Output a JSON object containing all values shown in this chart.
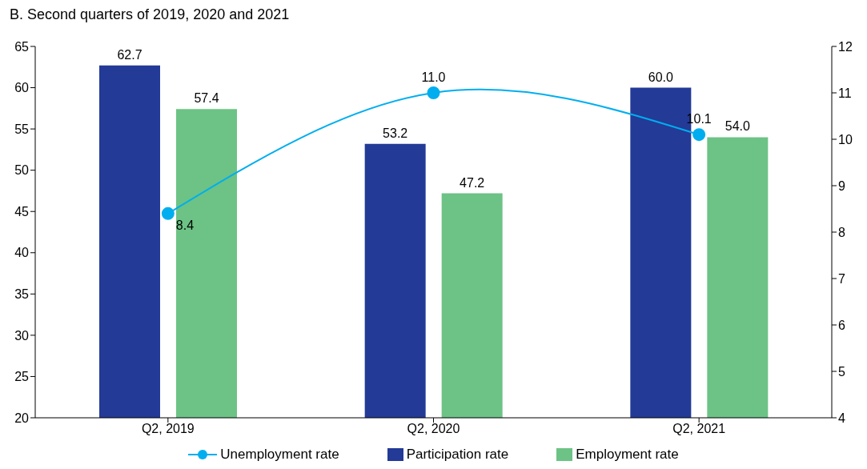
{
  "chart_data": {
    "type": "bar",
    "title": "B. Second quarters of 2019, 2020 and 2021",
    "categories": [
      "Q2, 2019",
      "Q2, 2020",
      "Q2, 2021"
    ],
    "series": [
      {
        "name": "Unemployment rate",
        "type": "line",
        "axis": "y2",
        "color": "#00aeef",
        "values": [
          8.4,
          11.0,
          10.1
        ],
        "value_labels": [
          "8.4",
          "11.0",
          "10.1"
        ],
        "marker": "circle"
      },
      {
        "name": "Participation rate",
        "color": "#233a97",
        "values": [
          62.7,
          53.2,
          60.0
        ],
        "value_labels": [
          "62.7",
          "53.2",
          "60.0"
        ]
      },
      {
        "name": "Employment rate",
        "color": "#6cc385",
        "values": [
          57.4,
          47.2,
          54.0
        ],
        "value_labels": [
          "57.4",
          "47.2",
          "54.0"
        ]
      }
    ],
    "ylim": [
      20,
      65
    ],
    "yticks": [
      20,
      25,
      30,
      35,
      40,
      45,
      50,
      55,
      60,
      65
    ],
    "y2lim": [
      4,
      12
    ],
    "y2ticks": [
      4,
      5,
      6,
      7,
      8,
      9,
      10,
      11,
      12
    ],
    "grid": false,
    "legend": "bottom"
  }
}
